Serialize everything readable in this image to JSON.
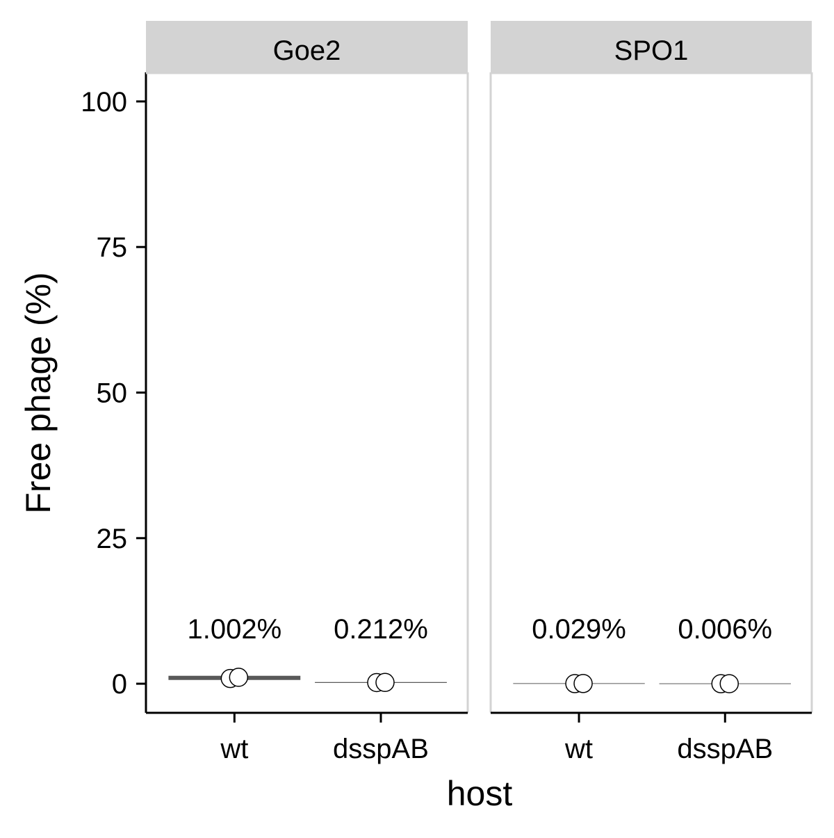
{
  "chart_data": {
    "type": "scatter",
    "ylabel": "Free phage (%)",
    "xlabel": "host",
    "ylim": [
      -5,
      105
    ],
    "yticks": [
      0,
      25,
      50,
      75,
      100
    ],
    "ytick_labels": [
      "0",
      "25",
      "50",
      "75",
      "100"
    ],
    "grid": false,
    "categories": [
      "wt",
      "dsspAB"
    ],
    "panels": [
      {
        "title": "Goe2",
        "groups": [
          {
            "category": "wt",
            "points": [
              0.9,
              1.1
            ],
            "mean": 1.002,
            "label": "1.002%"
          },
          {
            "category": "dsspAB",
            "points": [
              0.2,
              0.22
            ],
            "mean": 0.212,
            "label": "0.212%"
          }
        ]
      },
      {
        "title": "SPO1",
        "groups": [
          {
            "category": "wt",
            "points": [
              0.02,
              0.035
            ],
            "mean": 0.029,
            "label": "0.029%"
          },
          {
            "category": "dsspAB",
            "points": [
              0.005,
              0.007
            ],
            "mean": 0.006,
            "label": "0.006%"
          }
        ]
      }
    ],
    "colors": {
      "strip_fill": "#d3d3d3",
      "panel_border": "#d3d3d3",
      "axis_line": "#000000",
      "mean_line": "#595959",
      "point_fill": "#ffffff",
      "point_stroke": "#000000"
    }
  }
}
